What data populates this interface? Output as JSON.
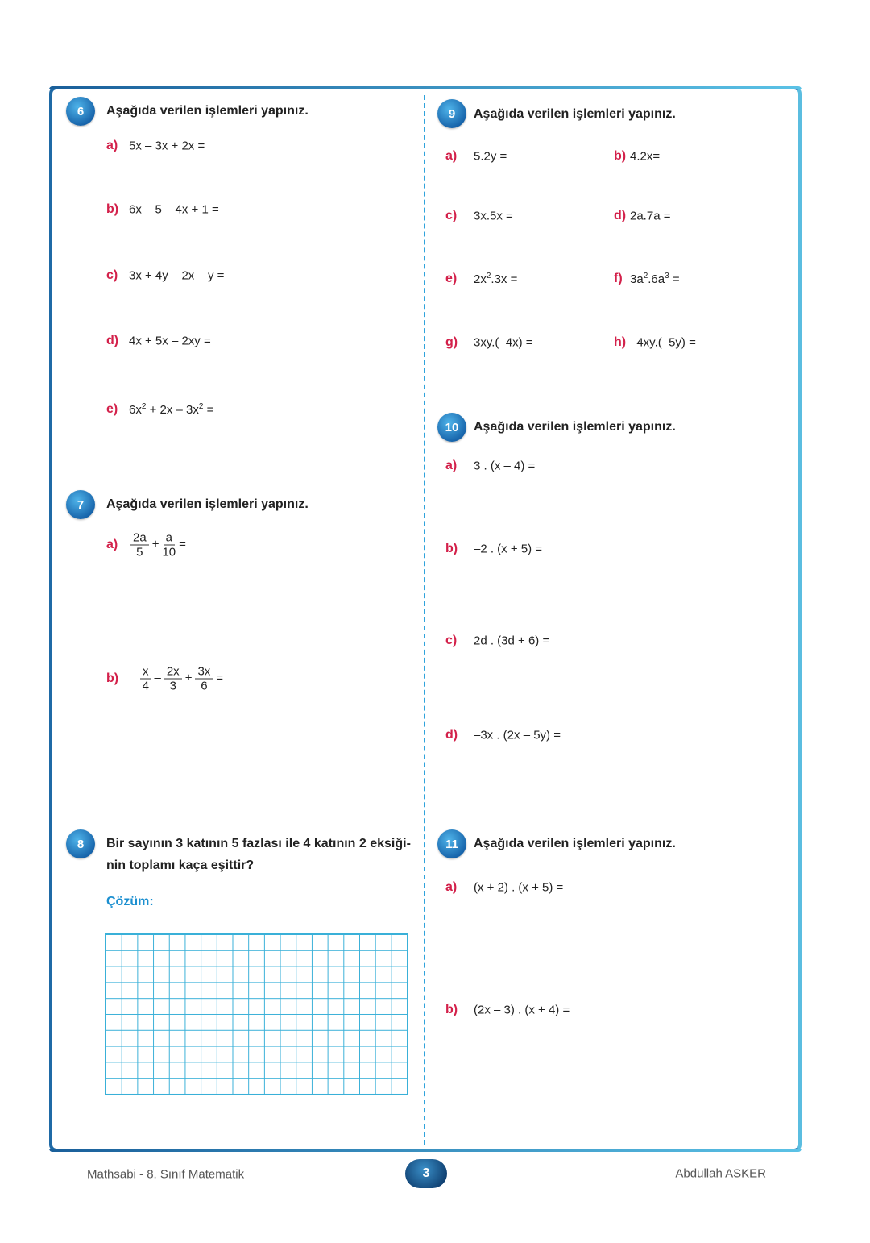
{
  "colors": {
    "label": "#d3204a",
    "badge": "#1f6aa6",
    "solution": "#1b8fd0",
    "grid": "#39b0d8"
  },
  "q6": {
    "number": "6",
    "title": "Aşağıda verilen işlemleri yapınız.",
    "items": [
      {
        "label": "a)",
        "expr": [
          {
            "t": "5x – 3x + 2x ="
          }
        ]
      },
      {
        "label": "b)",
        "expr": [
          {
            "t": "6x – 5 – 4x + 1 ="
          }
        ]
      },
      {
        "label": "c)",
        "expr": [
          {
            "t": "3x + 4y – 2x – y ="
          }
        ]
      },
      {
        "label": "d)",
        "expr": [
          {
            "t": "4x + 5x – 2xy ="
          }
        ]
      },
      {
        "label": "e)",
        "expr": [
          {
            "t": "6x"
          },
          {
            "sup": "2"
          },
          {
            "t": " + 2x – 3x"
          },
          {
            "sup": "2"
          },
          {
            "t": " ="
          }
        ]
      }
    ]
  },
  "q7": {
    "number": "7",
    "title": "Aşağıda verilen işlemleri yapınız.",
    "items": [
      {
        "label": "a)",
        "terms": [
          {
            "n": "2a",
            "d": "5"
          },
          {
            "op": "+"
          },
          {
            "n": "a",
            "d": "10"
          },
          {
            "op": "="
          }
        ]
      },
      {
        "label": "b)",
        "terms": [
          {
            "n": "x",
            "d": "4"
          },
          {
            "op": "–"
          },
          {
            "n": "2x",
            "d": "3"
          },
          {
            "op": "+"
          },
          {
            "n": "3x",
            "d": "6"
          },
          {
            "op": "="
          }
        ]
      }
    ]
  },
  "q8": {
    "number": "8",
    "line1": "Bir sayının 3 katının 5 fazlası ile 4 katının 2 eksiği-",
    "line2": "nin toplamı kaça eşittir?",
    "solution_label": "Çözüm:"
  },
  "q9": {
    "number": "9",
    "title": "Aşağıda verilen işlemleri yapınız.",
    "items": [
      {
        "label": "a)",
        "expr": [
          {
            "t": "5.2y ="
          }
        ]
      },
      {
        "label": "b)",
        "expr": [
          {
            "t": "4.2x="
          }
        ]
      },
      {
        "label": "c)",
        "expr": [
          {
            "t": "3x.5x  ="
          }
        ]
      },
      {
        "label": "d)",
        "expr": [
          {
            "t": "2a.7a ="
          }
        ]
      },
      {
        "label": "e)",
        "expr": [
          {
            "t": "2x"
          },
          {
            "sup": "2"
          },
          {
            "t": ".3x ="
          }
        ]
      },
      {
        "label": "f)",
        "expr": [
          {
            "t": "3a"
          },
          {
            "sup": "2"
          },
          {
            "t": ".6a"
          },
          {
            "sup": "3"
          },
          {
            "t": "  ="
          }
        ]
      },
      {
        "label": "g)",
        "expr": [
          {
            "t": "3xy.(–4x) ="
          }
        ]
      },
      {
        "label": "h)",
        "expr": [
          {
            "t": "–4xy.(–5y) ="
          }
        ]
      }
    ]
  },
  "q10": {
    "number": "10",
    "title": "Aşağıda verilen işlemleri yapınız.",
    "items": [
      {
        "label": "a)",
        "expr": [
          {
            "t": "3 . (x – 4) ="
          }
        ]
      },
      {
        "label": "b)",
        "expr": [
          {
            "t": "–2 . (x + 5) ="
          }
        ]
      },
      {
        "label": "c)",
        "expr": [
          {
            "t": "2d . (3d + 6) ="
          }
        ]
      },
      {
        "label": "d)",
        "expr": [
          {
            "t": "–3x . (2x – 5y) ="
          }
        ]
      }
    ]
  },
  "q11": {
    "number": "11",
    "title": "Aşağıda verilen işlemleri yapınız.",
    "items": [
      {
        "label": "a)",
        "expr": [
          {
            "t": "(x + 2) . (x + 5) ="
          }
        ]
      },
      {
        "label": "b)",
        "expr": [
          {
            "t": "(2x – 3) . (x + 4) ="
          }
        ]
      }
    ]
  },
  "footer": {
    "left": "Mathsabi - 8. Sınıf Matematik",
    "page": "3",
    "right": "Abdullah ASKER"
  }
}
